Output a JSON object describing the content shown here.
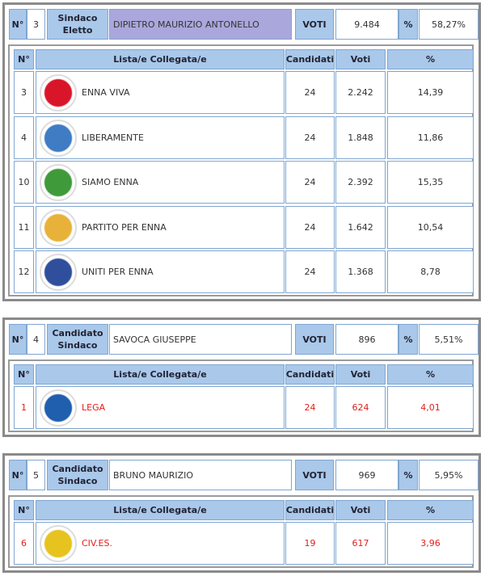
{
  "blocks": [
    {
      "header": {
        "n_label": "N°",
        "number": "3",
        "role": "Sindaco Eletto",
        "name": "DIPIETRO MAURIZIO ANTONELLO",
        "votes_label": "VOTI",
        "votes": "9.484",
        "pct_label": "%",
        "pct": "58,27%"
      },
      "name_color": "#aaa7dc",
      "row_color": "#333333",
      "columns": [
        "N°",
        "Lista/e Collegata/e",
        "Candidati",
        "Voti",
        "%"
      ],
      "rows": [
        {
          "n": "3",
          "list": "ENNA VIVA",
          "candidates": "24",
          "votes": "2.242",
          "pct": "14,39",
          "logo_color": "#d9152a"
        },
        {
          "n": "4",
          "list": "LIBERAMENTE",
          "candidates": "24",
          "votes": "1.848",
          "pct": "11,86",
          "logo_color": "#3f7cc4"
        },
        {
          "n": "10",
          "list": "SIAMO ENNA",
          "candidates": "24",
          "votes": "2.392",
          "pct": "15,35",
          "logo_color": "#3f9a3a"
        },
        {
          "n": "11",
          "list": "PARTITO PER ENNA",
          "candidates": "24",
          "votes": "1.642",
          "pct": "10,54",
          "logo_color": "#e8b23a"
        },
        {
          "n": "12",
          "list": "UNITI PER ENNA",
          "candidates": "24",
          "votes": "1.368",
          "pct": "8,78",
          "logo_color": "#2f4f9c"
        }
      ]
    },
    {
      "header": {
        "n_label": "N°",
        "number": "4",
        "role": "Candidato Sindaco",
        "name": "SAVOCA GIUSEPPE",
        "votes_label": "VOTI",
        "votes": "896",
        "pct_label": "%",
        "pct": "5,51%"
      },
      "name_color": "#ffffff",
      "row_color": "#e0201b",
      "columns": [
        "N°",
        "Lista/e Collegata/e",
        "Candidati",
        "Voti",
        "%"
      ],
      "rows": [
        {
          "n": "1",
          "list": "LEGA",
          "candidates": "24",
          "votes": "624",
          "pct": "4,01",
          "logo_color": "#1f5fae"
        }
      ]
    },
    {
      "header": {
        "n_label": "N°",
        "number": "5",
        "role": "Candidato Sindaco",
        "name": "BRUNO MAURIZIO",
        "votes_label": "VOTI",
        "votes": "969",
        "pct_label": "%",
        "pct": "5,95%"
      },
      "name_color": "#ffffff",
      "row_color": "#e0201b",
      "columns": [
        "N°",
        "Lista/e Collegata/e",
        "Candidati",
        "Voti",
        "%"
      ],
      "rows": [
        {
          "n": "6",
          "list": "CIV.ES.",
          "candidates": "19",
          "votes": "617",
          "pct": "3,96",
          "logo_color": "#e7c320"
        }
      ]
    }
  ]
}
